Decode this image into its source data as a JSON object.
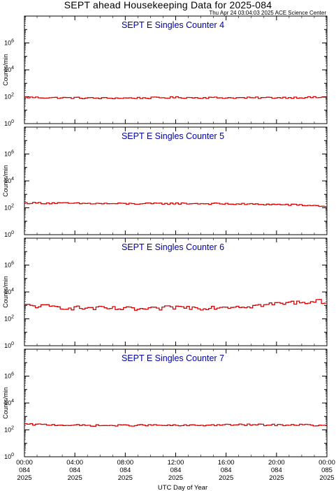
{
  "title": "SEPT ahead Housekeeping Data for 2025-084",
  "timestamp": "Thu Apr 24 03:04:03 2025 ACE Science Center",
  "colors": {
    "series": "#dd0000",
    "panel_title": "#0000aa",
    "axes": "#000000"
  },
  "ylabel": "Counts/min",
  "xlabel": "UTC Day of Year",
  "x_ticks": [
    {
      "time": "00:00",
      "day": "084",
      "year": "2025"
    },
    {
      "time": "04:00",
      "day": "084",
      "year": "2025"
    },
    {
      "time": "08:00",
      "day": "084",
      "year": "2025"
    },
    {
      "time": "12:00",
      "day": "084",
      "year": "2025"
    },
    {
      "time": "16:00",
      "day": "084",
      "year": "2025"
    },
    {
      "time": "20:00",
      "day": "084",
      "year": "2025"
    },
    {
      "time": "00:00",
      "day": "085",
      "year": "2025"
    }
  ],
  "y_ticks": [
    {
      "base": "10",
      "exp": "0"
    },
    {
      "base": "10",
      "exp": "2"
    },
    {
      "base": "10",
      "exp": "4"
    },
    {
      "base": "10",
      "exp": "6"
    }
  ],
  "chart_data": [
    {
      "type": "line",
      "title": "SEPT E Singles Counter 4",
      "ylabel": "Counts/min",
      "yscale": "log",
      "ylim": [
        1,
        100000000
      ],
      "xlim": [
        0,
        24
      ],
      "x_unit": "hours UTC on day 084 of 2025",
      "x": [
        0,
        2,
        4,
        6,
        8,
        10,
        12,
        14,
        16,
        18,
        20,
        22,
        24
      ],
      "values": [
        90,
        85,
        82,
        78,
        80,
        82,
        88,
        85,
        84,
        82,
        85,
        88,
        90
      ]
    },
    {
      "type": "line",
      "title": "SEPT E Singles Counter 5",
      "ylabel": "Counts/min",
      "yscale": "log",
      "ylim": [
        1,
        100000000
      ],
      "xlim": [
        0,
        24
      ],
      "x_unit": "hours UTC on day 084 of 2025",
      "x": [
        0,
        2,
        4,
        6,
        8,
        10,
        12,
        14,
        16,
        18,
        20,
        22,
        24
      ],
      "values": [
        230,
        225,
        210,
        205,
        200,
        200,
        210,
        205,
        195,
        185,
        175,
        160,
        130
      ]
    },
    {
      "type": "line",
      "title": "SEPT E Singles Counter 6",
      "ylabel": "Counts/min",
      "yscale": "log",
      "ylim": [
        1,
        100000000
      ],
      "xlim": [
        0,
        24
      ],
      "x_unit": "hours UTC on day 084 of 2025",
      "x": [
        0,
        2,
        4,
        6,
        8,
        10,
        12,
        14,
        16,
        18,
        20,
        22,
        24
      ],
      "values": [
        1000,
        800,
        650,
        600,
        550,
        500,
        750,
        650,
        800,
        900,
        1300,
        1800,
        2000
      ]
    },
    {
      "type": "line",
      "title": "SEPT E Singles Counter 7",
      "ylabel": "Counts/min",
      "yscale": "log",
      "ylim": [
        1,
        100000000
      ],
      "xlim": [
        0,
        24
      ],
      "x_unit": "hours UTC on day 084 of 2025",
      "x": [
        0,
        2,
        4,
        6,
        8,
        10,
        12,
        14,
        16,
        18,
        20,
        22,
        24
      ],
      "values": [
        260,
        240,
        220,
        210,
        215,
        225,
        210,
        220,
        235,
        240,
        230,
        240,
        200
      ]
    }
  ]
}
